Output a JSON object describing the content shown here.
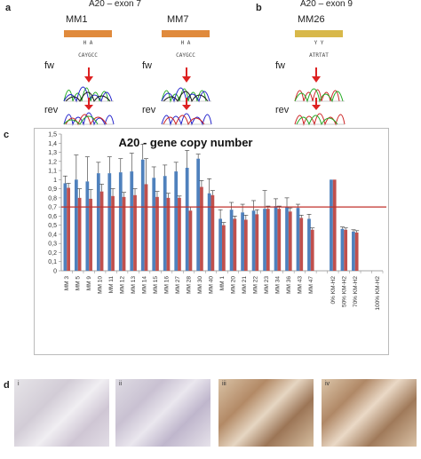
{
  "panels": {
    "a": {
      "letter": "a",
      "exon": "A20 – exon 7",
      "samples": [
        "MM1",
        "MM7"
      ]
    },
    "b": {
      "letter": "b",
      "exon": "A20 – exon 9",
      "samples": [
        "MM26"
      ]
    },
    "c": {
      "letter": "c"
    },
    "d": {
      "letter": "d",
      "subpanels": [
        "i",
        "ii",
        "iii",
        "iv"
      ]
    }
  },
  "row_labels": {
    "fw": "fw",
    "rev": "rev"
  },
  "colors": {
    "blue": "#4f81bd",
    "red": "#c0504d",
    "threshold": "#c0312b",
    "seq_orange": "#e08a3c",
    "seq_yellow": "#d8b84a"
  },
  "chart_data": {
    "type": "bar",
    "title": "A20 - gene copy number",
    "ylim": [
      0,
      1.5
    ],
    "yticks": [
      "0",
      "0,1",
      "0,2",
      "0,3",
      "0,4",
      "0,5",
      "0,6",
      "0,7",
      "0,8",
      "0,9",
      "1",
      "1,1",
      "1,2",
      "1,3",
      "1,4",
      "1,5"
    ],
    "threshold": 0.7,
    "categories": [
      "MM 3",
      "MM 5",
      "MM 9",
      "MM 10",
      "MM 11",
      "MM 12",
      "MM 13",
      "MM 14",
      "MM 15",
      "MM 16",
      "MM 27",
      "MM 28",
      "MM 30",
      "MM 40",
      "MM 1",
      "MM 20",
      "MM 21",
      "MM 22",
      "MM 23",
      "MM 34",
      "MM 36",
      "MM 43",
      "MM 47",
      "",
      "0% KM-H2",
      "50% KM-H2",
      "70% KM-H2",
      "",
      "100% KM-H2"
    ],
    "series": [
      {
        "values": [
          0.96,
          1.0,
          0.98,
          1.07,
          1.07,
          1.08,
          1.09,
          1.22,
          1.02,
          1.04,
          1.09,
          1.13,
          1.23,
          0.85,
          0.57,
          0.67,
          0.64,
          0.66,
          0.68,
          0.71,
          0.7,
          0.69,
          0.57,
          null,
          1.0,
          0.46,
          0.43,
          null,
          null
        ],
        "errors": [
          0.08,
          0.27,
          0.27,
          0.12,
          0.18,
          0.15,
          0.2,
          0.17,
          0.12,
          0.12,
          0.1,
          0.19,
          0.05,
          0.16,
          0.1,
          0.08,
          0.09,
          0.11,
          0.2,
          0.08,
          0.1,
          0.04,
          0.05,
          null,
          0.0,
          0.02,
          0.02,
          null,
          null
        ]
      },
      {
        "values": [
          0.91,
          0.8,
          0.79,
          0.87,
          0.82,
          0.81,
          0.83,
          0.95,
          0.81,
          0.8,
          0.8,
          0.66,
          0.92,
          0.83,
          0.5,
          0.57,
          0.56,
          0.62,
          0.68,
          0.68,
          0.65,
          0.58,
          0.45,
          null,
          1.0,
          0.45,
          0.42,
          null,
          null
        ],
        "errors": [
          0.05,
          0.1,
          0.1,
          0.08,
          0.08,
          0.05,
          0.07,
          0.28,
          0.06,
          0.05,
          0.02,
          0.04,
          0.07,
          0.05,
          0.03,
          0.03,
          0.05,
          0.05,
          0.03,
          0.03,
          0.04,
          0.03,
          0.02,
          null,
          0.0,
          0.02,
          0.02,
          null,
          null
        ]
      }
    ]
  }
}
